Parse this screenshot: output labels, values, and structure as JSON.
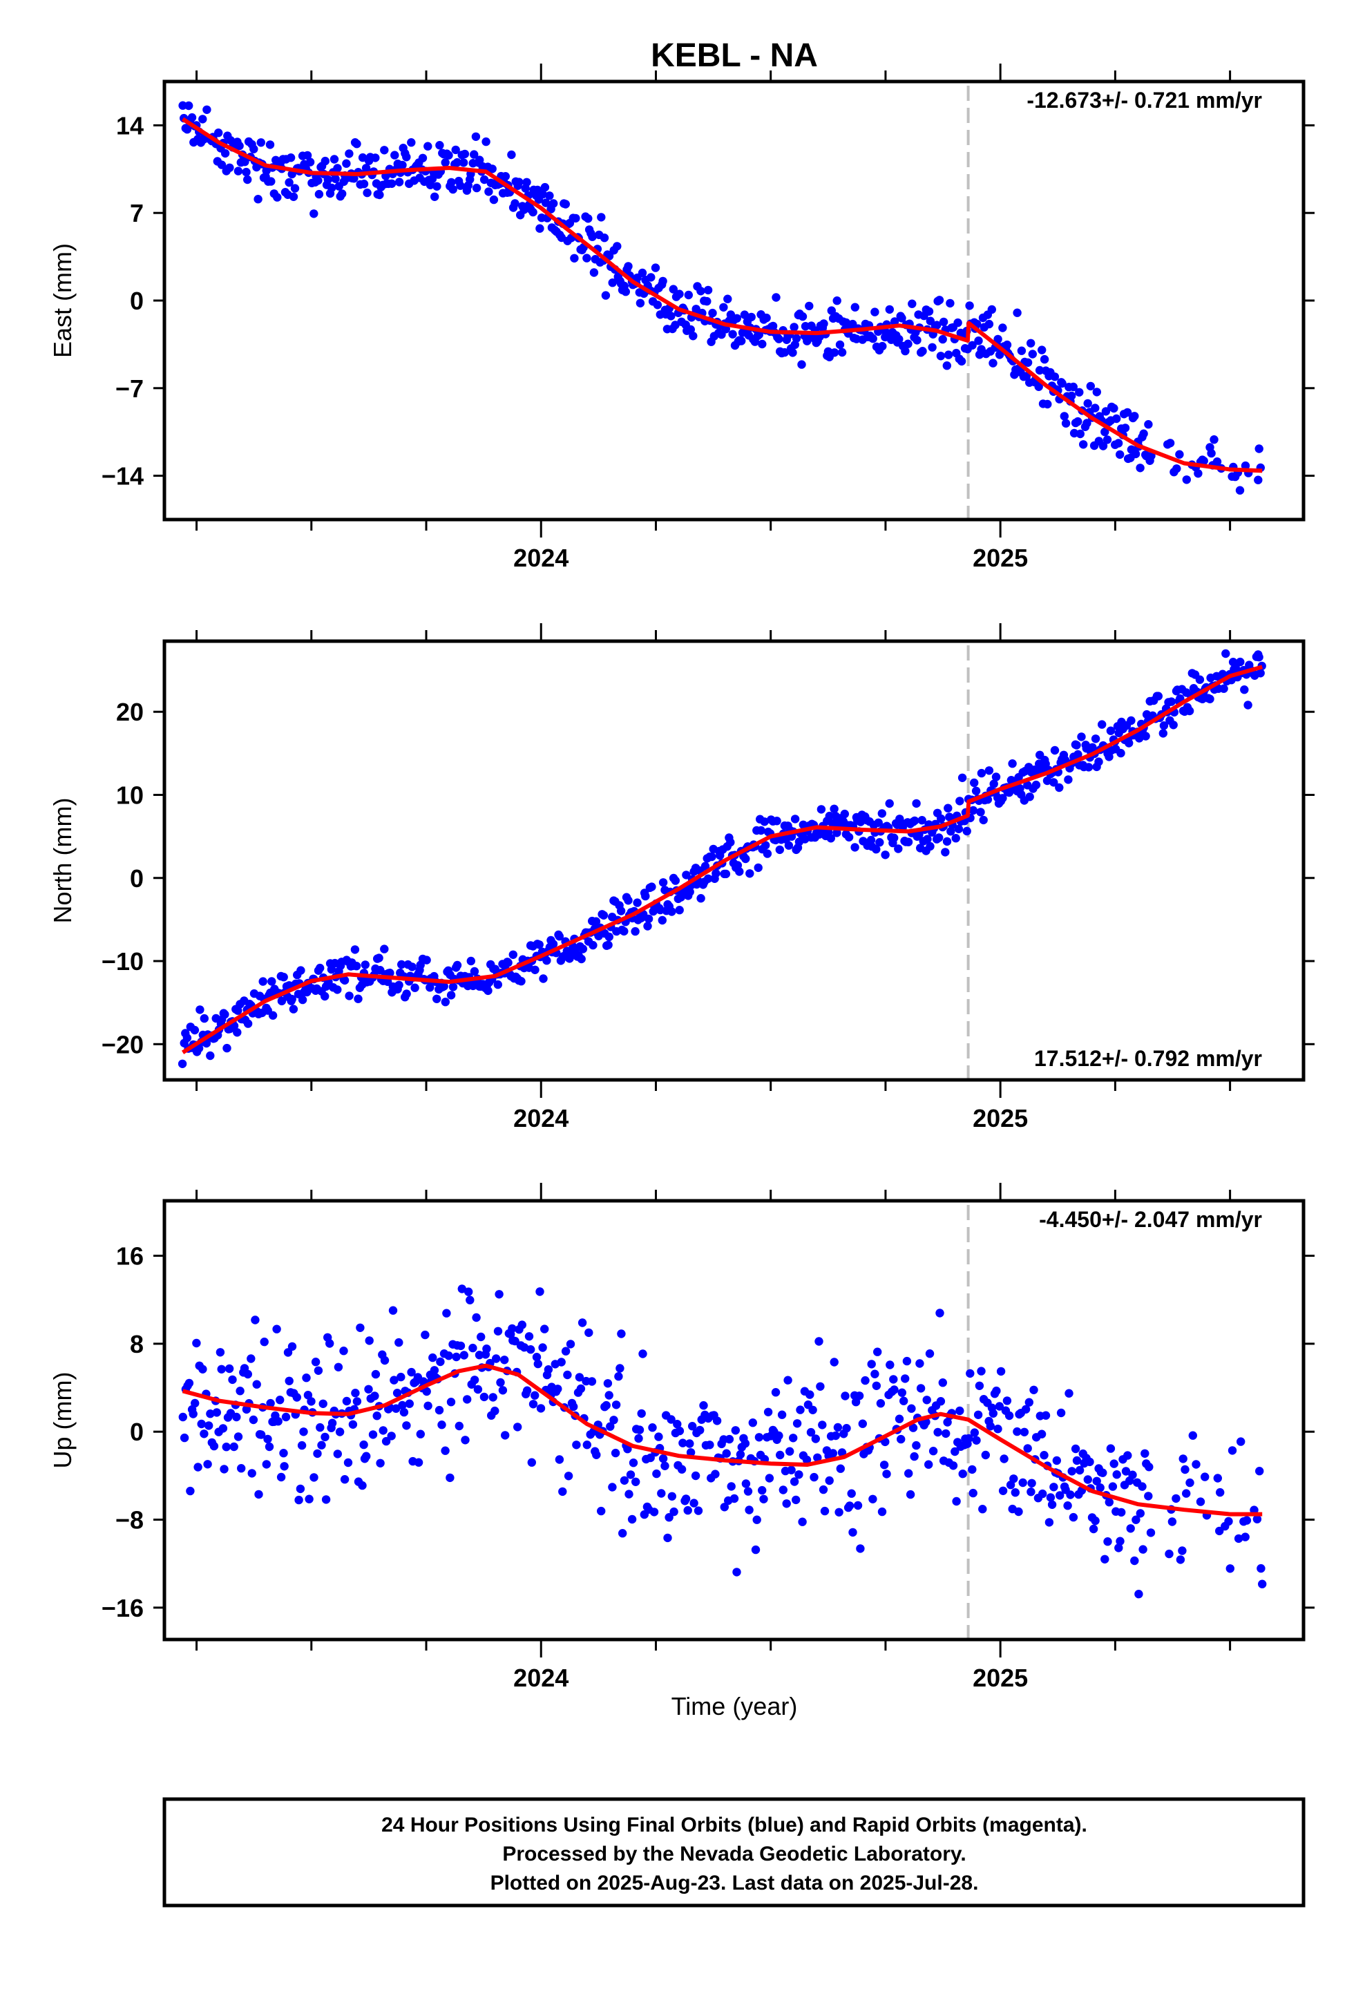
{
  "title": "KEBL - NA",
  "xlabel": "Time (year)",
  "footer": {
    "line1": "24 Hour Positions Using Final Orbits (blue) and Rapid Orbits (magenta).",
    "line2": "Processed by the Nevada Geodetic Laboratory.",
    "line3": "Plotted on 2025-Aug-23. Last data on 2025-Jul-28."
  },
  "colors": {
    "final_orbit_points": "#0000ff",
    "fit_line": "#ff0000",
    "equipment_change_line": "#c0c0c0"
  },
  "chart_data": [
    {
      "type": "scatter",
      "component": "east",
      "ylabel": "East (mm)",
      "rate_label": "-12.673+/- 0.721 mm/yr",
      "rate_position": "top-right",
      "xlim": [
        2023.18,
        2025.66
      ],
      "ylim": [
        -17.5,
        17.5
      ],
      "yticks": [
        14,
        7,
        0,
        -7,
        -14
      ],
      "ytick_labels": [
        "14",
        "7",
        "0",
        "−7",
        "−14"
      ],
      "xticks_major": [
        2024,
        2025
      ],
      "xtick_labels": [
        "2024",
        "2025"
      ],
      "xticks_minor": [
        2023.25,
        2023.5,
        2023.75,
        2024.25,
        2024.5,
        2024.75,
        2025.25,
        2025.5
      ],
      "discontinuity_x": 2024.93,
      "rate_mm_per_yr": -12.673,
      "rate_sigma_mm_per_yr": 0.721,
      "fit_knots": [
        [
          2023.22,
          14.5
        ],
        [
          2023.3,
          12.6
        ],
        [
          2023.4,
          10.8
        ],
        [
          2023.5,
          10.2
        ],
        [
          2023.6,
          10.1
        ],
        [
          2023.7,
          10.4
        ],
        [
          2023.8,
          10.6
        ],
        [
          2023.88,
          10.3
        ],
        [
          2023.95,
          8.6
        ],
        [
          2024.0,
          7.4
        ],
        [
          2024.05,
          5.9
        ],
        [
          2024.12,
          3.9
        ],
        [
          2024.2,
          1.5
        ],
        [
          2024.3,
          -0.7
        ],
        [
          2024.4,
          -1.9
        ],
        [
          2024.5,
          -2.5
        ],
        [
          2024.6,
          -2.6
        ],
        [
          2024.7,
          -2.3
        ],
        [
          2024.78,
          -2.0
        ],
        [
          2024.86,
          -2.4
        ],
        [
          2024.929,
          -3.2
        ],
        [
          2024.931,
          -1.8
        ],
        [
          2025.0,
          -3.8
        ],
        [
          2025.1,
          -6.8
        ],
        [
          2025.2,
          -9.4
        ],
        [
          2025.3,
          -11.6
        ],
        [
          2025.4,
          -13.0
        ],
        [
          2025.5,
          -13.5
        ],
        [
          2025.57,
          -13.6
        ]
      ],
      "points": {
        "x_start": 2023.22,
        "x_end": 2025.57,
        "count": 720,
        "scatter_sd": 1.1,
        "seed": 11,
        "gaps": [
          [
            2025.33,
            2025.36
          ]
        ],
        "sparse_ranges": [
          [
            2025.36,
            2025.57
          ]
        ]
      }
    },
    {
      "type": "scatter",
      "component": "north",
      "ylabel": "North (mm)",
      "rate_label": "17.512+/- 0.792 mm/yr",
      "rate_position": "bottom-right",
      "xlim": [
        2023.18,
        2025.66
      ],
      "ylim": [
        -24.3,
        28.5
      ],
      "yticks": [
        20,
        10,
        0,
        -10,
        -20
      ],
      "ytick_labels": [
        "20",
        "10",
        "0",
        "−10",
        "−20"
      ],
      "xticks_major": [
        2024,
        2025
      ],
      "xtick_labels": [
        "2024",
        "2025"
      ],
      "xticks_minor": [
        2023.25,
        2023.5,
        2023.75,
        2024.25,
        2024.5,
        2024.75,
        2025.25,
        2025.5
      ],
      "discontinuity_x": 2024.93,
      "rate_mm_per_yr": 17.512,
      "rate_sigma_mm_per_yr": 0.792,
      "fit_knots": [
        [
          2023.22,
          -21.0
        ],
        [
          2023.3,
          -18.2
        ],
        [
          2023.4,
          -14.8
        ],
        [
          2023.5,
          -12.4
        ],
        [
          2023.58,
          -11.6
        ],
        [
          2023.7,
          -12.1
        ],
        [
          2023.8,
          -12.5
        ],
        [
          2023.9,
          -11.8
        ],
        [
          2024.0,
          -9.4
        ],
        [
          2024.1,
          -6.9
        ],
        [
          2024.2,
          -4.4
        ],
        [
          2024.3,
          -1.3
        ],
        [
          2024.4,
          2.1
        ],
        [
          2024.5,
          5.0
        ],
        [
          2024.6,
          6.1
        ],
        [
          2024.7,
          5.8
        ],
        [
          2024.8,
          5.6
        ],
        [
          2024.87,
          6.2
        ],
        [
          2024.929,
          7.5
        ],
        [
          2024.931,
          9.2
        ],
        [
          2025.0,
          10.7
        ],
        [
          2025.1,
          12.6
        ],
        [
          2025.2,
          14.9
        ],
        [
          2025.3,
          17.8
        ],
        [
          2025.4,
          21.2
        ],
        [
          2025.5,
          24.3
        ],
        [
          2025.57,
          25.4
        ]
      ],
      "points": {
        "x_start": 2023.22,
        "x_end": 2025.57,
        "count": 740,
        "scatter_sd": 1.2,
        "seed": 23,
        "gaps": [],
        "sparse_ranges": []
      }
    },
    {
      "type": "scatter",
      "component": "up",
      "ylabel": "Up (mm)",
      "rate_label": "-4.450+/- 2.047 mm/yr",
      "rate_position": "top-right",
      "xlim": [
        2023.18,
        2025.66
      ],
      "ylim": [
        -18.9,
        21.0
      ],
      "yticks": [
        16,
        8,
        0,
        -8,
        -16
      ],
      "ytick_labels": [
        "16",
        "8",
        "0",
        "−8",
        "−16"
      ],
      "xticks_major": [
        2024,
        2025
      ],
      "xtick_labels": [
        "2024",
        "2025"
      ],
      "xticks_minor": [
        2023.25,
        2023.5,
        2023.75,
        2024.25,
        2024.5,
        2024.75,
        2025.25,
        2025.5
      ],
      "discontinuity_x": 2024.93,
      "rate_mm_per_yr": -4.45,
      "rate_sigma_mm_per_yr": 2.047,
      "fit_knots": [
        [
          2023.22,
          3.7
        ],
        [
          2023.3,
          2.8
        ],
        [
          2023.4,
          2.2
        ],
        [
          2023.5,
          1.7
        ],
        [
          2023.58,
          1.6
        ],
        [
          2023.66,
          2.4
        ],
        [
          2023.75,
          4.2
        ],
        [
          2023.82,
          5.5
        ],
        [
          2023.88,
          6.0
        ],
        [
          2023.95,
          5.2
        ],
        [
          2024.02,
          3.1
        ],
        [
          2024.1,
          0.7
        ],
        [
          2024.2,
          -1.3
        ],
        [
          2024.3,
          -2.2
        ],
        [
          2024.4,
          -2.6
        ],
        [
          2024.5,
          -2.9
        ],
        [
          2024.58,
          -3.0
        ],
        [
          2024.66,
          -2.3
        ],
        [
          2024.75,
          -0.4
        ],
        [
          2024.82,
          1.1
        ],
        [
          2024.87,
          1.6
        ],
        [
          2024.93,
          1.1
        ],
        [
          2025.0,
          -0.7
        ],
        [
          2025.1,
          -3.2
        ],
        [
          2025.2,
          -5.4
        ],
        [
          2025.3,
          -6.6
        ],
        [
          2025.4,
          -7.1
        ],
        [
          2025.5,
          -7.5
        ],
        [
          2025.57,
          -7.5
        ]
      ],
      "points": {
        "x_start": 2023.22,
        "x_end": 2025.57,
        "count": 700,
        "scatter_sd": 3.6,
        "seed": 47,
        "gaps": [
          [
            2025.33,
            2025.36
          ]
        ],
        "sparse_ranges": [
          [
            2025.36,
            2025.57
          ]
        ]
      }
    }
  ]
}
